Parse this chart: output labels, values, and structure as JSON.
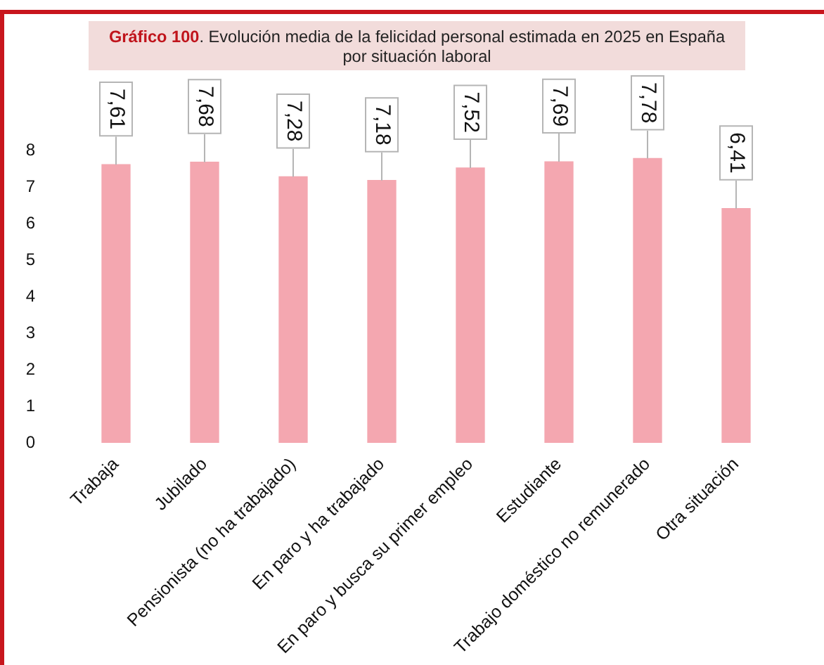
{
  "chart_data": {
    "type": "bar",
    "title": "Gráfico 100. Evolución media de la felicidad personal estimada en 2025 en España por situación laboral",
    "categories": [
      "Trabaja",
      "Jubilado",
      "Pensionista (no ha trabajado)",
      "En paro y ha trabajado",
      "En paro y busca su primer empleo",
      "Estudiante",
      "Trabajo doméstico no remunerado",
      "Otra situación"
    ],
    "values": [
      7.61,
      7.68,
      7.28,
      7.18,
      7.52,
      7.69,
      7.78,
      6.41
    ],
    "color": "#f4a7b0",
    "value_labels": [
      "7,61",
      "7,68",
      "7,28",
      "7,18",
      "7,52",
      "7,69",
      "7,78",
      "6,41"
    ],
    "ylim": [
      0,
      8
    ],
    "yticks": [
      0,
      1,
      2,
      3,
      4,
      5,
      6,
      7,
      8
    ],
    "grid": false,
    "legend": false
  }
}
